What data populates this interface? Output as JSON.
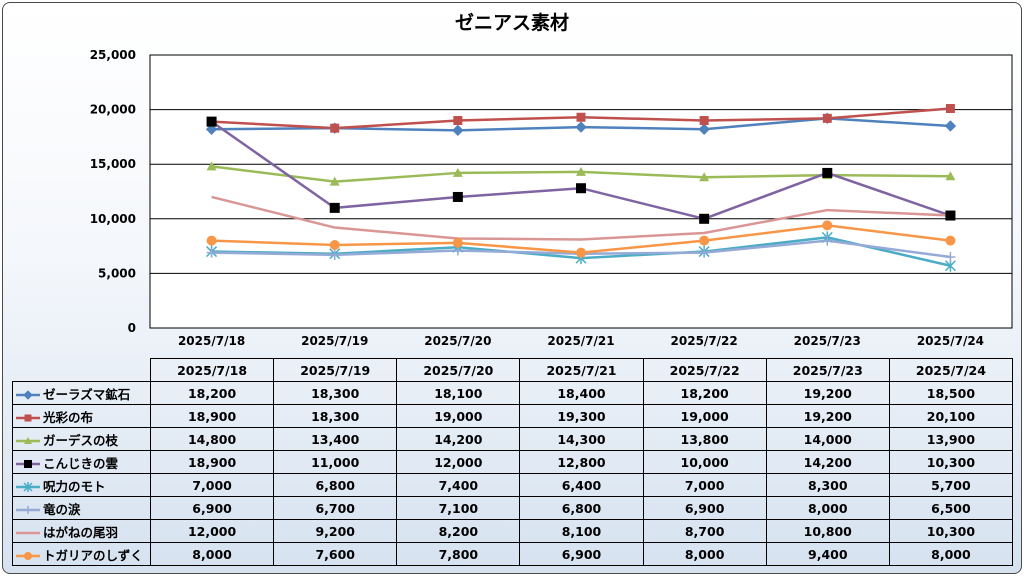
{
  "chart_data": {
    "type": "line",
    "title": "ゼニアス素材",
    "categories": [
      "2025/7/18",
      "2025/7/19",
      "2025/7/20",
      "2025/7/21",
      "2025/7/22",
      "2025/7/23",
      "2025/7/24"
    ],
    "ylim": [
      0,
      25000
    ],
    "yticks": [
      "0",
      "5,000",
      "10,000",
      "15,000",
      "20,000",
      "25,000"
    ],
    "ytick_values": [
      0,
      5000,
      10000,
      15000,
      20000,
      25000
    ],
    "grid": true,
    "legend": "data table below chart",
    "series": [
      {
        "name": "ゼーラズマ鉱石",
        "color": "#4f81bd",
        "marker": "diamond",
        "values": [
          18200,
          18300,
          18100,
          18400,
          18200,
          19200,
          18500
        ],
        "labels": [
          "18,200",
          "18,300",
          "18,100",
          "18,400",
          "18,200",
          "19,200",
          "18,500"
        ]
      },
      {
        "name": "光彩の布",
        "color": "#c0504d",
        "marker": "square",
        "values": [
          18900,
          18300,
          19000,
          19300,
          19000,
          19200,
          20100
        ],
        "labels": [
          "18,900",
          "18,300",
          "19,000",
          "19,300",
          "19,000",
          "19,200",
          "20,100"
        ]
      },
      {
        "name": "ガーデスの枝",
        "color": "#9bbb59",
        "marker": "triangle",
        "values": [
          14800,
          13400,
          14200,
          14300,
          13800,
          14000,
          13900
        ],
        "labels": [
          "14,800",
          "13,400",
          "14,200",
          "14,300",
          "13,800",
          "14,000",
          "13,900"
        ]
      },
      {
        "name": "こんじきの雲",
        "color": "#8064a2",
        "marker": "square-black",
        "values": [
          18900,
          11000,
          12000,
          12800,
          10000,
          14200,
          10300
        ],
        "labels": [
          "18,900",
          "11,000",
          "12,000",
          "12,800",
          "10,000",
          "14,200",
          "10,300"
        ]
      },
      {
        "name": "呪力のモト",
        "color": "#4bacc6",
        "marker": "star",
        "values": [
          7000,
          6800,
          7400,
          6400,
          7000,
          8300,
          5700
        ],
        "labels": [
          "7,000",
          "6,800",
          "7,400",
          "6,400",
          "7,000",
          "8,300",
          "5,700"
        ]
      },
      {
        "name": "竜の涙",
        "color": "#95aad6",
        "marker": "plus",
        "values": [
          6900,
          6700,
          7100,
          6800,
          6900,
          8000,
          6500
        ],
        "labels": [
          "6,900",
          "6,700",
          "7,100",
          "6,800",
          "6,900",
          "8,000",
          "6,500"
        ]
      },
      {
        "name": "はがねの尾羽",
        "color": "#d99694",
        "marker": "none",
        "values": [
          12000,
          9200,
          8200,
          8100,
          8700,
          10800,
          10300
        ],
        "labels": [
          "12,000",
          "9,200",
          "8,200",
          "8,100",
          "8,700",
          "10,800",
          "10,300"
        ]
      },
      {
        "name": "トガリアのしずく",
        "color": "#f79646",
        "marker": "circle",
        "values": [
          8000,
          7600,
          7800,
          6900,
          8000,
          9400,
          8000
        ],
        "labels": [
          "8,000",
          "7,600",
          "7,800",
          "6,900",
          "8,000",
          "9,400",
          "8,000"
        ]
      }
    ]
  }
}
